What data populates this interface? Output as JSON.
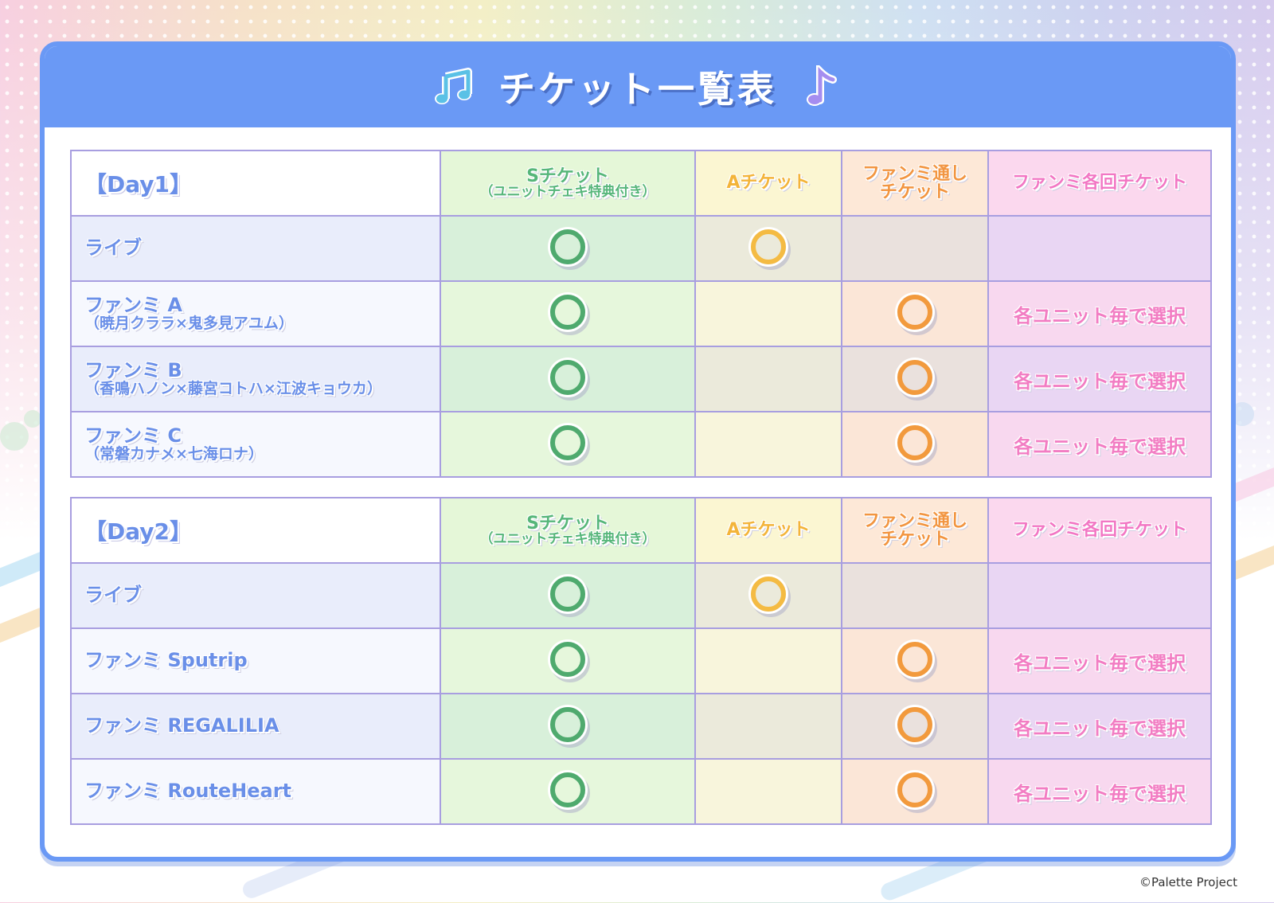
{
  "title": "チケット一覧表",
  "icons": {
    "left": "music-notes-icon",
    "right": "music-note-icon"
  },
  "columns": {
    "s_line1": "Sチケット",
    "s_line2": "（ユニットチェキ特典付き）",
    "a": "Aチケット",
    "fanmeeting_pass_line1": "ファンミ通し",
    "fanmeeting_pass_line2": "チケット",
    "fanmeeting_each": "ファンミ各回チケット"
  },
  "mark": "◯",
  "select_text": "各ユニット毎で選択",
  "day1": {
    "label": "【Day1】",
    "rows": [
      {
        "main": "ライブ",
        "sub": "",
        "s": true,
        "a": true,
        "f": false,
        "k": ""
      },
      {
        "main": "ファンミ A",
        "sub": "（暁月クララ×鬼多見アユム）",
        "s": true,
        "a": false,
        "f": true,
        "k": "各ユニット毎で選択"
      },
      {
        "main": "ファンミ B",
        "sub": "（香鳴ハノン×藤宮コトハ×江波キョウカ）",
        "s": true,
        "a": false,
        "f": true,
        "k": "各ユニット毎で選択"
      },
      {
        "main": "ファンミ C",
        "sub": "（常磐カナメ×七海ロナ）",
        "s": true,
        "a": false,
        "f": true,
        "k": "各ユニット毎で選択"
      }
    ]
  },
  "day2": {
    "label": "【Day2】",
    "rows": [
      {
        "main": "ライブ",
        "sub": "",
        "s": true,
        "a": true,
        "f": false,
        "k": ""
      },
      {
        "main": "ファンミ Sputrip",
        "sub": "",
        "s": true,
        "a": false,
        "f": true,
        "k": "各ユニット毎で選択"
      },
      {
        "main": "ファンミ REGALILIA",
        "sub": "",
        "s": true,
        "a": false,
        "f": true,
        "k": "各ユニット毎で選択"
      },
      {
        "main": "ファンミ RouteHeart",
        "sub": "",
        "s": true,
        "a": false,
        "f": true,
        "k": "各ユニット毎で選択"
      }
    ]
  },
  "copyright": "©Palette Project",
  "colors": {
    "accent": "#6a99f5",
    "s": "#4faa6e",
    "a": "#f4bb43",
    "f": "#f29a3d",
    "k": "#f27dc3"
  }
}
